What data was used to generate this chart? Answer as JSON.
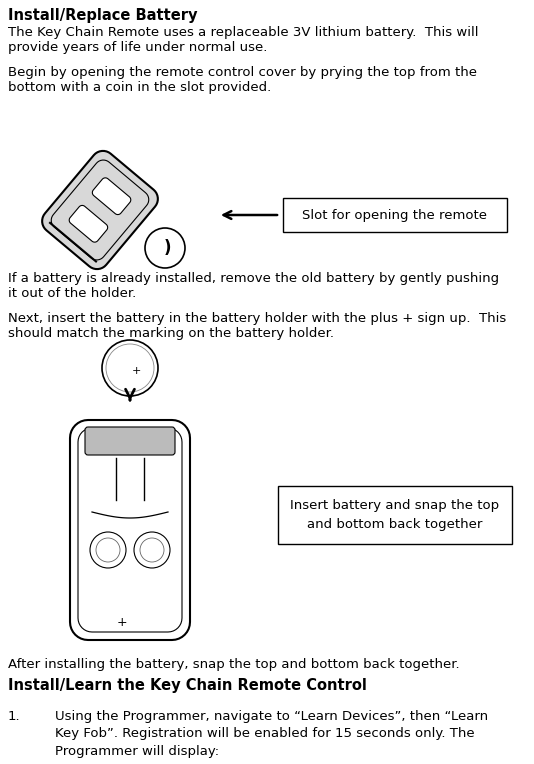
{
  "title1": "Install/Replace Battery",
  "title2": "Install/Learn the Key Chain Remote Control",
  "para1": "The Key Chain Remote uses a replaceable 3V lithium battery.  This will\nprovide years of life under normal use.",
  "para2": "Begin by opening the remote control cover by prying the top from the\nbottom with a coin in the slot provided.",
  "para3": "If a battery is already installed, remove the old battery by gently pushing\nit out of the holder.",
  "para4": "Next, insert the battery in the battery holder with the plus + sign up.  This\nshould match the marking on the battery holder.",
  "para5": "After installing the battery, snap the top and bottom back together.",
  "label1": "Slot for opening the remote",
  "label2": "Insert battery and snap the top\nand bottom back together",
  "list1": "Using the Programmer, navigate to “Learn Devices”, then “Learn\nKey Fob”. Registration will be enabled for 15 seconds only. The\nProgrammer will display:",
  "bg_color": "#ffffff",
  "text_color": "#000000"
}
